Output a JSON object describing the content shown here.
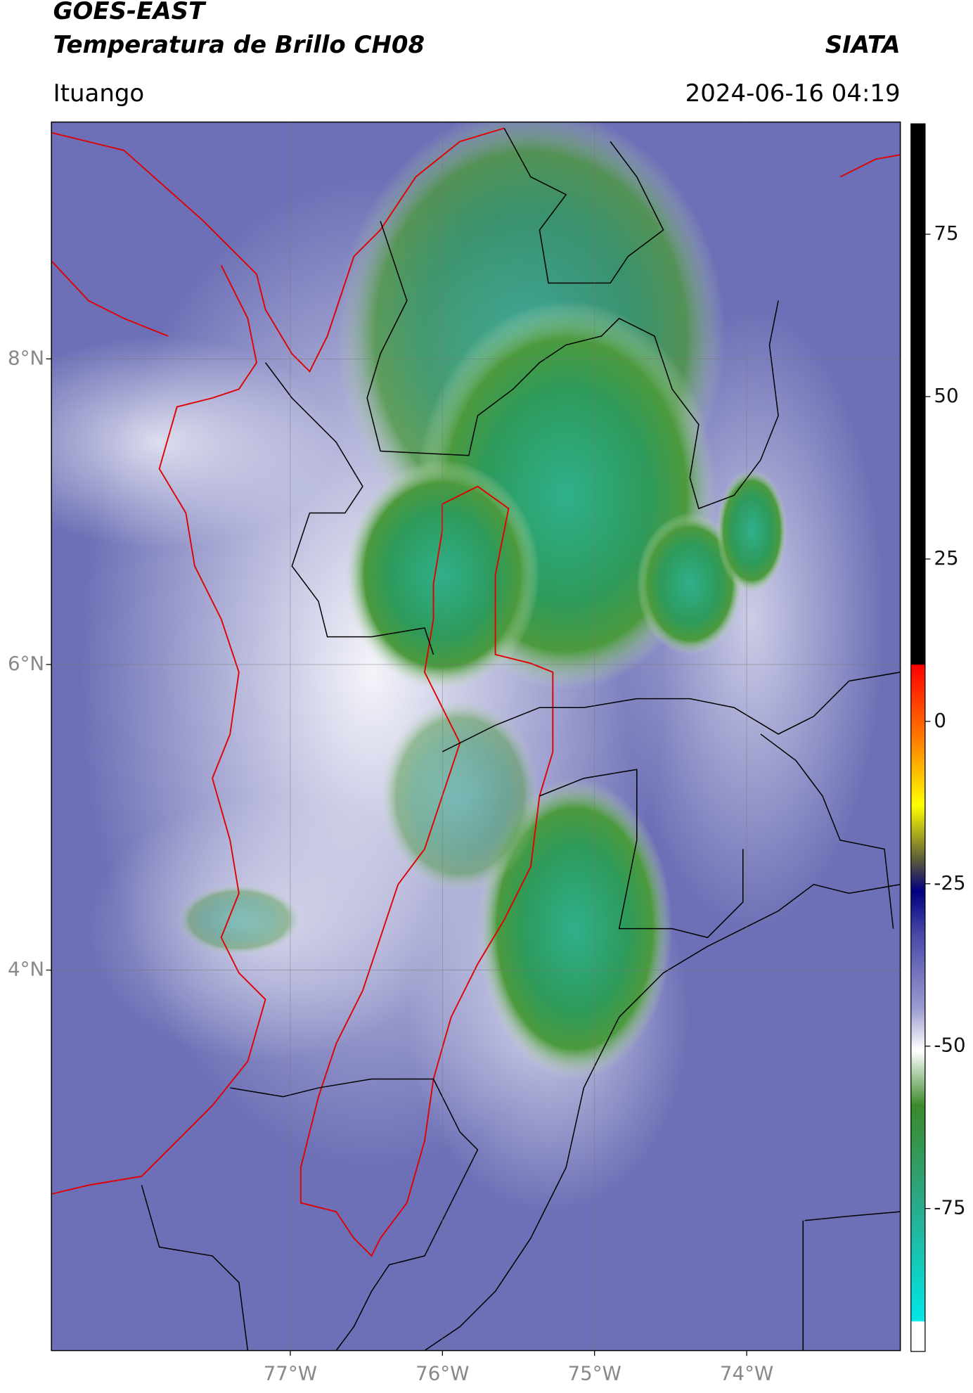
{
  "header": {
    "title": "GOES-EAST",
    "subtitle": "Temperatura de Brillo CH08",
    "brand": "SIATA",
    "location": "Ituango",
    "datetime": "2024-06-16 04:19"
  },
  "map": {
    "lon_lim": [
      -78.57,
      -72.99
    ],
    "lat_lim": [
      1.51,
      9.55
    ],
    "lon_ticks": [
      {
        "value": -77,
        "label": "77°W"
      },
      {
        "value": -76,
        "label": "76°W"
      },
      {
        "value": -75,
        "label": "75°W"
      },
      {
        "value": -74,
        "label": "74°W"
      }
    ],
    "lat_ticks": [
      {
        "value": 8,
        "label": "8°N"
      },
      {
        "value": 6,
        "label": "6°N"
      },
      {
        "value": 4,
        "label": "4°N"
      }
    ],
    "grid": true
  },
  "colorbar": {
    "lim": [
      -97,
      92
    ],
    "ticks": [
      75,
      50,
      25,
      0,
      -25,
      -50,
      -75
    ]
  }
}
